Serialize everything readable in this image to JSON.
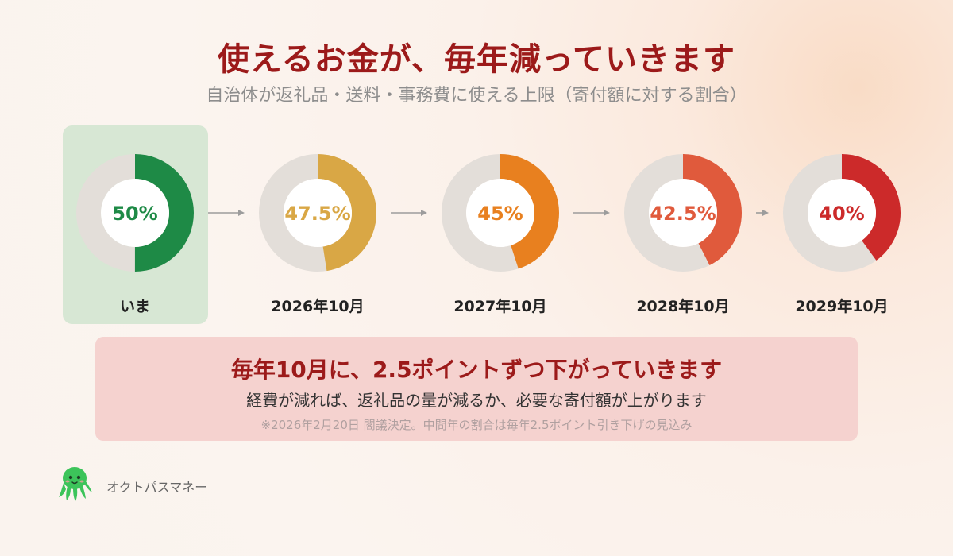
{
  "header": {
    "title": "使えるお金が、毎年減っていきます",
    "subtitle": "自治体が返礼品・送料・事務費に使える上限（寄付額に対する割合）"
  },
  "chart_data": {
    "type": "donut",
    "title": "使えるお金が、毎年減っていきます",
    "subtitle": "自治体が返礼品・送料・事務費に使える上限（寄付額に対する割合）",
    "unit": "%",
    "points": [
      {
        "label": "いま",
        "value": 50,
        "display": "50%",
        "color": "#1e8a46",
        "highlighted": true
      },
      {
        "label": "2026年10月",
        "value": 47.5,
        "display": "47.5%",
        "color": "#d9a745",
        "highlighted": false
      },
      {
        "label": "2027年10月",
        "value": 45,
        "display": "45%",
        "color": "#e8801f",
        "highlighted": false
      },
      {
        "label": "2028年10月",
        "value": 42.5,
        "display": "42.5%",
        "color": "#e05a3c",
        "highlighted": false
      },
      {
        "label": "2029年10月",
        "value": 40,
        "display": "40%",
        "color": "#cc2a2a",
        "highlighted": false
      }
    ],
    "track_color": "#e3ded9",
    "highlight_color": "#d7e7d4"
  },
  "callout": {
    "headline": "毎年10月に、2.5ポイントずつ下がっていきます",
    "body": "経費が減れば、返礼品の量が減るか、必要な寄付額が上がります",
    "note": "※2026年2月20日 閣議決定。中間年の割合は毎年2.5ポイント引き下げの見込み"
  },
  "brand": {
    "name": "オクトパスマネー",
    "icon": "octopus-mascot-icon",
    "color": "#3cc45a"
  }
}
